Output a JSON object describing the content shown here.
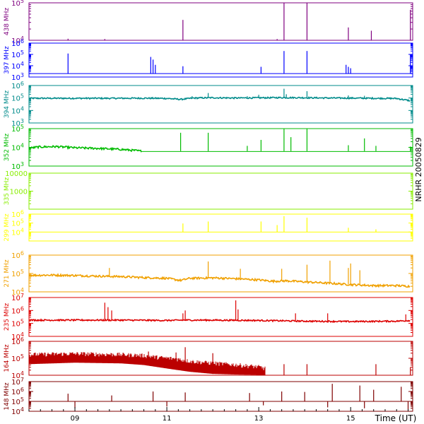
{
  "chart_data": {
    "type": "line",
    "title": "",
    "side_label": "NRHR 20050829",
    "xlabel": "Time (UT)",
    "x_unit": "hour UT",
    "xlim": [
      8.0,
      16.35
    ],
    "x_ticks": [
      9,
      11,
      13,
      15
    ],
    "x_tick_labels": [
      "09",
      "11",
      "13",
      "15"
    ],
    "grid": false,
    "panels": [
      {
        "name": "438 MHz",
        "color": "#7f007f",
        "scale": "log",
        "ylim": [
          10000,
          100000
        ],
        "y_ticks": [
          {
            "v": 10000,
            "b": "10",
            "e": "4"
          },
          {
            "v": 100000,
            "b": "10",
            "e": "5"
          }
        ],
        "baseline": 10000,
        "spikes": [
          [
            8.85,
            11000
          ],
          [
            9.65,
            10800
          ],
          [
            11.35,
            35000
          ],
          [
            13.4,
            10800
          ],
          [
            13.55,
            100000
          ],
          [
            14.05,
            100000
          ],
          [
            14.95,
            22000
          ],
          [
            15.45,
            18000
          ],
          [
            16.3,
            65000
          ]
        ]
      },
      {
        "name": "397 MHz",
        "color": "#0000ff",
        "scale": "log",
        "ylim": [
          1000,
          1000000
        ],
        "y_ticks": [
          {
            "v": 1000,
            "b": "10",
            "e": "3"
          },
          {
            "v": 10000,
            "b": "10",
            "e": "4"
          },
          {
            "v": 100000,
            "b": "10",
            "e": "5"
          },
          {
            "v": 1000000,
            "b": "10",
            "e": "6"
          }
        ],
        "baseline": 2000,
        "spikes": [
          [
            8.85,
            120000
          ],
          [
            10.65,
            60000
          ],
          [
            10.7,
            35000
          ],
          [
            10.75,
            12000
          ],
          [
            11.35,
            9000
          ],
          [
            13.05,
            8000
          ],
          [
            13.55,
            200000
          ],
          [
            14.05,
            200000
          ],
          [
            14.9,
            12000
          ],
          [
            14.95,
            8000
          ],
          [
            15.0,
            6000
          ],
          [
            16.3,
            100000
          ]
        ]
      },
      {
        "name": "394 MHz",
        "color": "#008b8b",
        "scale": "log",
        "ylim": [
          1000,
          1000000
        ],
        "y_ticks": [
          {
            "v": 1000,
            "b": "10",
            "e": "3"
          },
          {
            "v": 10000,
            "b": "10",
            "e": "4"
          },
          {
            "v": 100000,
            "b": "10",
            "e": "5"
          },
          {
            "v": 1000000,
            "b": "10",
            "e": "6"
          }
        ],
        "series": [
          [
            8.0,
            95000
          ],
          [
            9.0,
            95000
          ],
          [
            9.5,
            95000
          ],
          [
            10.0,
            95000
          ],
          [
            10.5,
            97000
          ],
          [
            11.0,
            93000
          ],
          [
            11.3,
            78000
          ],
          [
            11.6,
            100000
          ],
          [
            12.0,
            105000
          ],
          [
            12.5,
            100000
          ],
          [
            13.0,
            103000
          ],
          [
            13.5,
            108000
          ],
          [
            14.0,
            105000
          ],
          [
            14.5,
            100000
          ],
          [
            15.0,
            98000
          ],
          [
            15.5,
            95000
          ],
          [
            16.0,
            92000
          ],
          [
            16.3,
            60000
          ]
        ],
        "spikes": [
          [
            11.55,
            140000
          ],
          [
            11.9,
            250000
          ],
          [
            12.75,
            140000
          ],
          [
            13.0,
            180000
          ],
          [
            13.55,
            550000
          ],
          [
            13.6,
            200000
          ],
          [
            14.05,
            350000
          ],
          [
            14.95,
            160000
          ],
          [
            15.3,
            150000
          ]
        ]
      },
      {
        "name": "352 MHz",
        "color": "#00bb00",
        "scale": "log",
        "ylim": [
          1000,
          100000
        ],
        "y_ticks": [
          {
            "v": 1000,
            "b": "10",
            "e": "3"
          },
          {
            "v": 10000,
            "b": "10",
            "e": "4"
          },
          {
            "v": 100000,
            "b": "10",
            "e": "5"
          }
        ],
        "series": [
          [
            8.0,
            9000
          ],
          [
            8.2,
            10500
          ],
          [
            8.6,
            11000
          ],
          [
            9.0,
            9500
          ],
          [
            9.5,
            8800
          ],
          [
            10.0,
            7800
          ],
          [
            10.3,
            6800
          ],
          [
            10.45,
            6300
          ]
        ],
        "baseline_start": 10.45,
        "baseline": 6000,
        "spikes": [
          [
            11.3,
            60000
          ],
          [
            11.9,
            60000
          ],
          [
            12.75,
            12000
          ],
          [
            13.05,
            25000
          ],
          [
            13.55,
            100000
          ],
          [
            13.7,
            35000
          ],
          [
            14.05,
            100000
          ],
          [
            14.95,
            13000
          ],
          [
            15.3,
            30000
          ],
          [
            15.55,
            12000
          ],
          [
            16.3,
            11000
          ]
        ]
      },
      {
        "name": "335 MHz",
        "color": "#88ee00",
        "scale": "log",
        "ylim": [
          100,
          10000
        ],
        "y_ticks": [
          {
            "v": 1000,
            "t": "1000"
          },
          {
            "v": 10000,
            "t": "10000"
          }
        ],
        "spikes": []
      },
      {
        "name": "299 MHz",
        "color": "#ffff00",
        "scale": "log",
        "ylim": [
          1000,
          1000000
        ],
        "y_ticks": [
          {
            "v": 10000,
            "b": "10",
            "e": "4"
          },
          {
            "v": 100000,
            "b": "10",
            "e": "5"
          },
          {
            "v": 1000000,
            "b": "10",
            "e": "6"
          }
        ],
        "baseline": 10000,
        "spikes": [
          [
            11.35,
            90000
          ],
          [
            11.9,
            150000
          ],
          [
            13.05,
            150000
          ],
          [
            13.4,
            60000
          ],
          [
            13.55,
            600000
          ],
          [
            14.05,
            400000
          ],
          [
            14.95,
            30000
          ],
          [
            15.55,
            20000
          ]
        ]
      },
      {
        "name": "271 MHz",
        "color": "#f0a000",
        "scale": "log",
        "ylim": [
          10000,
          1000000
        ],
        "y_ticks": [
          {
            "v": 10000,
            "b": "10",
            "e": "4"
          },
          {
            "v": 100000,
            "b": "10",
            "e": "5"
          },
          {
            "v": 1000000,
            "b": "10",
            "e": "6"
          }
        ],
        "series": [
          [
            8.0,
            80000
          ],
          [
            8.5,
            82000
          ],
          [
            9.0,
            78000
          ],
          [
            9.5,
            72000
          ],
          [
            10.0,
            68000
          ],
          [
            10.5,
            60000
          ],
          [
            11.0,
            55000
          ],
          [
            11.3,
            42000
          ],
          [
            11.5,
            55000
          ],
          [
            12.0,
            58000
          ],
          [
            12.5,
            52000
          ],
          [
            13.0,
            45000
          ],
          [
            13.3,
            38000
          ],
          [
            13.6,
            40000
          ],
          [
            14.0,
            35000
          ],
          [
            14.5,
            30000
          ],
          [
            15.0,
            25000
          ],
          [
            15.5,
            22000
          ],
          [
            16.0,
            22000
          ],
          [
            16.3,
            20000
          ]
        ],
        "spikes": [
          [
            9.75,
            200000
          ],
          [
            11.9,
            450000
          ],
          [
            12.6,
            180000
          ],
          [
            13.5,
            180000
          ],
          [
            14.05,
            300000
          ],
          [
            14.55,
            500000
          ],
          [
            14.95,
            200000
          ],
          [
            15.0,
            350000
          ],
          [
            15.2,
            150000
          ]
        ]
      },
      {
        "name": "235 MHz",
        "color": "#dd0000",
        "scale": "log",
        "ylim": [
          10000,
          10000000
        ],
        "y_ticks": [
          {
            "v": 10000,
            "b": "10",
            "e": "4"
          },
          {
            "v": 100000,
            "b": "10",
            "e": "5"
          },
          {
            "v": 1000000,
            "b": "10",
            "e": "6"
          },
          {
            "v": 10000000,
            "b": "10",
            "e": "7"
          }
        ],
        "series": [
          [
            8.0,
            180000
          ],
          [
            9.0,
            180000
          ],
          [
            10.0,
            180000
          ],
          [
            11.0,
            170000
          ],
          [
            11.4,
            180000
          ],
          [
            12.0,
            180000
          ],
          [
            13.0,
            170000
          ],
          [
            14.0,
            150000
          ],
          [
            15.0,
            140000
          ],
          [
            16.0,
            150000
          ],
          [
            16.3,
            170000
          ]
        ],
        "spikes": [
          [
            9.65,
            4000000
          ],
          [
            9.72,
            1800000
          ],
          [
            9.8,
            1000000
          ],
          [
            11.4,
            1000000
          ],
          [
            11.35,
            600000
          ],
          [
            12.5,
            6000000
          ],
          [
            12.55,
            1200000
          ],
          [
            13.8,
            600000
          ],
          [
            14.5,
            600000
          ],
          [
            16.2,
            500000
          ]
        ]
      },
      {
        "name": "164 MHz",
        "color": "#bb0000",
        "scale": "log",
        "ylim": [
          10000,
          1000000
        ],
        "y_ticks": [
          {
            "v": 10000,
            "b": "10",
            "e": "4"
          },
          {
            "v": 100000,
            "b": "10",
            "e": "5"
          },
          {
            "v": 1000000,
            "b": "10",
            "e": "6"
          }
        ],
        "band_hi": [
          [
            8.0,
            160000
          ],
          [
            9.0,
            180000
          ],
          [
            10.0,
            160000
          ],
          [
            10.5,
            140000
          ],
          [
            10.8,
            110000
          ],
          [
            11.2,
            90000
          ],
          [
            11.5,
            65000
          ],
          [
            12.0,
            50000
          ],
          [
            12.5,
            40000
          ],
          [
            13.0,
            30000
          ],
          [
            13.15,
            24000
          ]
        ],
        "band_lo": [
          [
            8.0,
            45000
          ],
          [
            9.0,
            55000
          ],
          [
            10.0,
            50000
          ],
          [
            10.5,
            40000
          ],
          [
            11.0,
            25000
          ],
          [
            11.5,
            16000
          ],
          [
            12.0,
            12000
          ],
          [
            12.5,
            11000
          ],
          [
            13.0,
            10500
          ],
          [
            13.15,
            10000
          ]
        ],
        "baseline_start": 13.15,
        "baseline": 10000,
        "spikes": [
          [
            10.6,
            250000
          ],
          [
            11.2,
            220000
          ],
          [
            11.4,
            450000
          ],
          [
            12.0,
            200000
          ],
          [
            13.55,
            45000
          ],
          [
            14.05,
            45000
          ],
          [
            15.55,
            45000
          ],
          [
            16.3,
            30000
          ]
        ]
      },
      {
        "name": "148 MHz",
        "color": "#7f0000",
        "scale": "log",
        "ylim": [
          10000,
          10000000
        ],
        "y_ticks": [
          {
            "v": 10000,
            "b": "10",
            "e": "4"
          },
          {
            "v": 100000,
            "b": "10",
            "e": "5"
          },
          {
            "v": 1000000,
            "b": "10",
            "e": "6"
          },
          {
            "v": 10000000,
            "b": "10",
            "e": "7"
          }
        ],
        "baseline": 100000,
        "spikes": [
          [
            8.85,
            600000
          ],
          [
            9.8,
            400000
          ],
          [
            10.7,
            1000000
          ],
          [
            11.4,
            800000
          ],
          [
            12.8,
            700000
          ],
          [
            13.5,
            1000000
          ],
          [
            14.0,
            900000
          ],
          [
            14.6,
            6000000
          ],
          [
            15.2,
            4000000
          ],
          [
            15.5,
            1500000
          ],
          [
            16.1,
            3000000
          ]
        ],
        "dips": [
          [
            9.0,
            20000
          ],
          [
            11.0,
            30000
          ],
          [
            13.1,
            40000
          ],
          [
            14.5,
            25000
          ],
          [
            15.3,
            20000
          ],
          [
            16.25,
            15000
          ]
        ]
      }
    ]
  }
}
